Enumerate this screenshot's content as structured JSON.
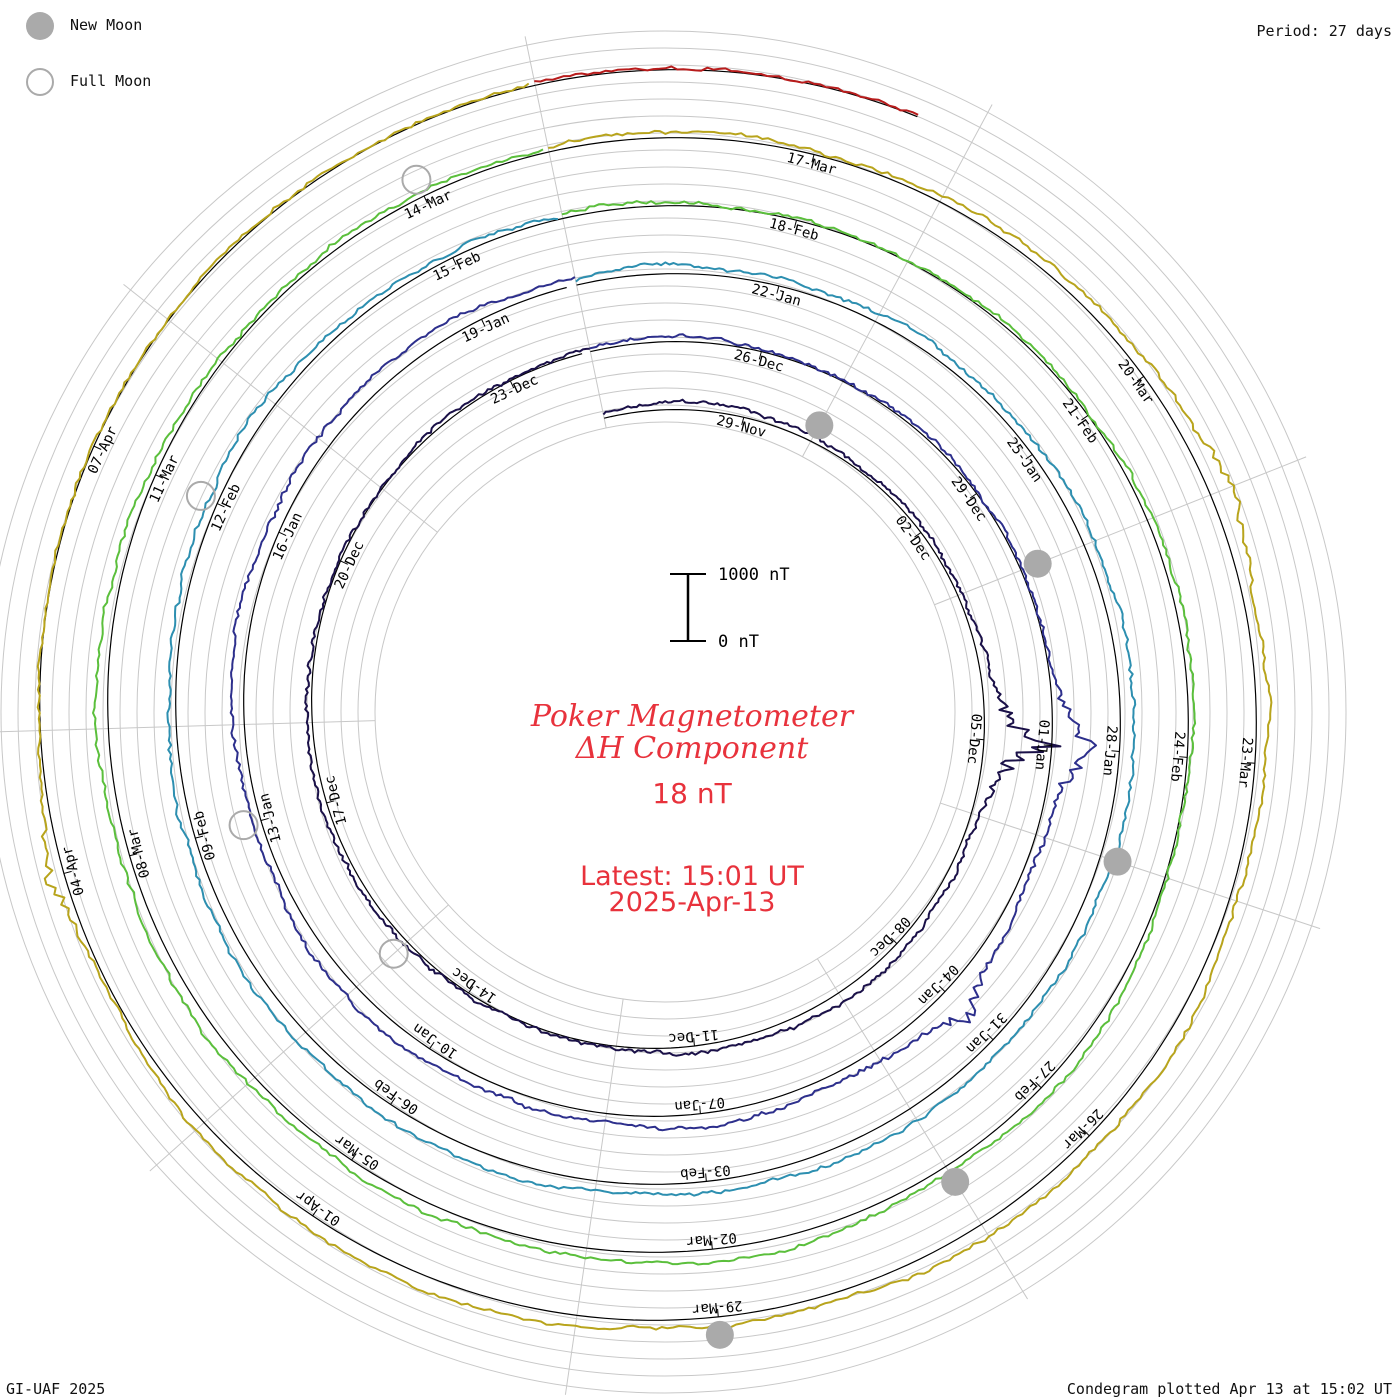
{
  "header": {
    "period": "Period: 27 days",
    "credit": "GI-UAF 2025",
    "plotted": "Condegram plotted Apr 13 at 15:02 UT"
  },
  "legend": {
    "new_moon": "New Moon",
    "full_moon": "Full Moon",
    "new_moon_color": "#aaaaaa",
    "full_moon_color": "#aaaaaa"
  },
  "center": {
    "title_line1": "Poker Magnetometer",
    "title_line2": "ΔH Component",
    "current_value": "18 nT",
    "latest_time": "Latest: 15:01 UT",
    "latest_date": "2025-Apr-13",
    "text_color": "#e8323c",
    "scale_top_label": "1000 nT",
    "scale_bottom_label": "0 nT"
  },
  "chart_data": {
    "type": "line",
    "title": "Poker Magnetometer ΔH Component",
    "period_days": 27,
    "scale_bar_nT": [
      0,
      1000
    ],
    "rotations": [
      {
        "start": "2024-11-27",
        "color": "#1a1048",
        "tick_labels": [
          "29-Nov",
          "02-Dec",
          "05-Dec",
          "08-Dec",
          "11-Dec",
          "14-Dec",
          "17-Dec",
          "20-Dec",
          "23-Dec"
        ]
      },
      {
        "start": "2024-12-24",
        "color": "#2d2f8c",
        "tick_labels": [
          "26-Dec",
          "29-Dec",
          "01-Jan",
          "04-Jan",
          "07-Jan",
          "10-Jan",
          "13-Jan",
          "16-Jan",
          "19-Jan"
        ]
      },
      {
        "start": "2025-01-20",
        "color": "#2d8fb0",
        "tick_labels": [
          "22-Jan",
          "25-Jan",
          "28-Jan",
          "31-Jan",
          "03-Feb",
          "06-Feb",
          "09-Feb",
          "12-Feb",
          "15-Feb"
        ]
      },
      {
        "start": "2025-02-16",
        "color": "#5bbf3c",
        "tick_labels": [
          "18-Feb",
          "21-Feb",
          "24-Feb",
          "27-Feb",
          "02-Mar",
          "05-Mar",
          "08-Mar",
          "11-Mar",
          "14-Mar"
        ]
      },
      {
        "start": "2025-03-15",
        "color": "#b8a41c",
        "tick_labels": [
          "17-Mar",
          "20-Mar",
          "23-Mar",
          "26-Mar",
          "29-Mar",
          "01-Apr",
          "04-Apr",
          "07-Apr"
        ]
      },
      {
        "start": "2025-04-11",
        "color": "#b81c1c",
        "tick_labels": []
      }
    ],
    "series_note": "dH disturbance traces, mostly quiet (~0-200 nT) with storm spikes near 01-Jan and 05-Dec",
    "disturbances": [
      {
        "date": "2024-12-05",
        "peak_nT": 1000
      },
      {
        "date": "2025-01-01",
        "peak_nT": 700
      },
      {
        "date": "2025-01-04",
        "peak_nT": 450
      },
      {
        "date": "2025-03-21",
        "peak_nT": 250
      },
      {
        "date": "2025-04-04",
        "peak_nT": 300
      }
    ],
    "new_moons": [
      "2024-11-30",
      "2024-12-30",
      "2025-01-29",
      "2025-02-28",
      "2025-03-29"
    ],
    "full_moons": [
      "2024-12-15",
      "2025-01-13",
      "2025-02-12",
      "2025-03-14"
    ],
    "grid": true
  }
}
